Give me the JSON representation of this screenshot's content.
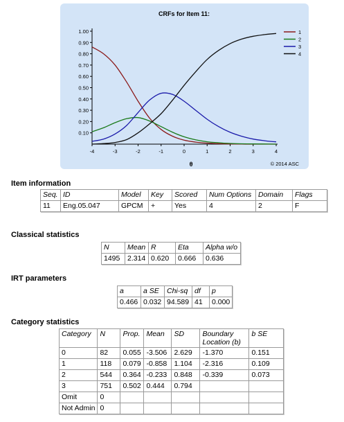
{
  "chart_data": {
    "type": "line",
    "title": "CRFs for Item 11:",
    "xlabel": "θ",
    "ylabel": "",
    "xlim": [
      -4,
      4
    ],
    "ylim": [
      0,
      1
    ],
    "x_ticks": [
      "-4",
      "-3",
      "-2",
      "-1",
      "0",
      "1",
      "2",
      "3",
      "4"
    ],
    "y_ticks": [
      "0.10",
      "0.20",
      "0.30",
      "0.40",
      "0.50",
      "0.60",
      "0.70",
      "0.80",
      "0.90",
      "1.00"
    ],
    "copyright": "© 2014 ASC",
    "legend_position": "top-right",
    "x": [
      -4,
      -3.5,
      -3,
      -2.5,
      -2,
      -1.5,
      -1,
      -0.5,
      0,
      0.5,
      1,
      1.5,
      2,
      2.5,
      3,
      3.5,
      4
    ],
    "series": [
      {
        "name": "1",
        "color": "#8b1a1a",
        "values": [
          0.86,
          0.8,
          0.7,
          0.55,
          0.38,
          0.23,
          0.13,
          0.07,
          0.035,
          0.018,
          0.009,
          0.004,
          0.002,
          0.001,
          0.0,
          0.0,
          0.0
        ]
      },
      {
        "name": "2",
        "color": "#1a7a1a",
        "values": [
          0.11,
          0.145,
          0.19,
          0.225,
          0.235,
          0.205,
          0.155,
          0.105,
          0.065,
          0.038,
          0.021,
          0.012,
          0.006,
          0.003,
          0.002,
          0.001,
          0.0
        ]
      },
      {
        "name": "3",
        "color": "#1a1aaa",
        "values": [
          0.025,
          0.045,
          0.09,
          0.165,
          0.28,
          0.39,
          0.45,
          0.44,
          0.38,
          0.3,
          0.22,
          0.155,
          0.105,
          0.07,
          0.045,
          0.03,
          0.02
        ]
      },
      {
        "name": "4",
        "color": "#111111",
        "values": [
          0.0,
          0.005,
          0.015,
          0.04,
          0.1,
          0.18,
          0.27,
          0.39,
          0.52,
          0.64,
          0.75,
          0.83,
          0.89,
          0.93,
          0.955,
          0.97,
          0.98
        ]
      }
    ]
  },
  "item_info": {
    "title": "Item information",
    "headers": [
      "Seq.",
      "ID",
      "Model",
      "Key",
      "Scored",
      "Num Options",
      "Domain",
      "Flags"
    ],
    "rows": [
      [
        "11",
        "Eng.05.047",
        "GPCM",
        "+",
        "Yes",
        "4",
        "2",
        "F"
      ]
    ]
  },
  "classical": {
    "title": "Classical statistics",
    "headers": [
      "N",
      "Mean",
      "R",
      "Eta",
      "Alpha w/o"
    ],
    "rows": [
      [
        "1495",
        "2.314",
        "0.620",
        "0.666",
        "0.636"
      ]
    ]
  },
  "irt": {
    "title": "IRT parameters",
    "headers": [
      "a",
      "a SE",
      "Chi-sq",
      "df",
      "p"
    ],
    "rows": [
      [
        "0.466",
        "0.032",
        "94.589",
        "41",
        "0.000"
      ]
    ]
  },
  "category": {
    "title": "Category statistics",
    "headers": [
      "Category",
      "N",
      "Prop.",
      "Mean",
      "SD",
      "Boundary Location (b)",
      "b SE"
    ],
    "rows": [
      [
        "0",
        "82",
        "0.055",
        "-3.506",
        "2.629",
        "-1.370",
        "0.151"
      ],
      [
        "1",
        "118",
        "0.079",
        "-0.858",
        "1.104",
        "-2.316",
        "0.109"
      ],
      [
        "2",
        "544",
        "0.364",
        "-0.233",
        "0.848",
        "-0.339",
        "0.073"
      ],
      [
        "3",
        "751",
        "0.502",
        "0.444",
        "0.794",
        "",
        ""
      ],
      [
        "Omit",
        "0",
        "",
        "",
        "",
        "",
        ""
      ],
      [
        "Not Admin",
        "0",
        "",
        "",
        "",
        "",
        ""
      ]
    ]
  }
}
